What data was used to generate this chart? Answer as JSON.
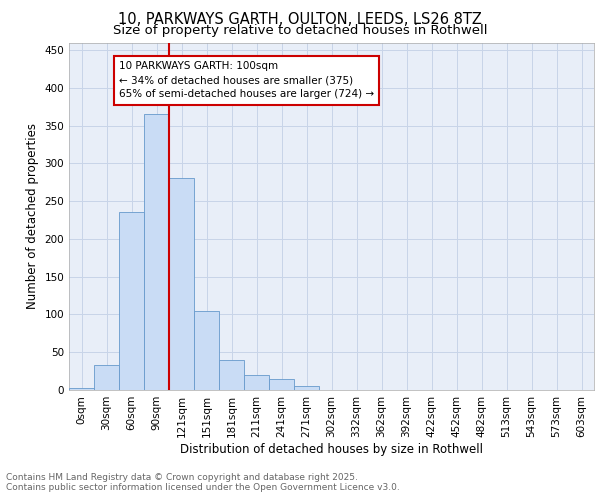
{
  "title_line1": "10, PARKWAYS GARTH, OULTON, LEEDS, LS26 8TZ",
  "title_line2": "Size of property relative to detached houses in Rothwell",
  "xlabel": "Distribution of detached houses by size in Rothwell",
  "ylabel": "Number of detached properties",
  "categories": [
    "0sqm",
    "30sqm",
    "60sqm",
    "90sqm",
    "121sqm",
    "151sqm",
    "181sqm",
    "211sqm",
    "241sqm",
    "271sqm",
    "302sqm",
    "332sqm",
    "362sqm",
    "392sqm",
    "422sqm",
    "452sqm",
    "482sqm",
    "513sqm",
    "543sqm",
    "573sqm",
    "603sqm"
  ],
  "values": [
    2,
    33,
    235,
    365,
    280,
    105,
    40,
    20,
    15,
    5,
    0,
    0,
    0,
    0,
    0,
    0,
    0,
    0,
    0,
    0,
    0
  ],
  "bar_color": "#c9dcf5",
  "bar_edge_color": "#6699cc",
  "grid_color": "#c8d4e8",
  "background_color": "#e8eef8",
  "property_line_label": "10 PARKWAYS GARTH: 100sqm",
  "annotation_line2": "← 34% of detached houses are smaller (375)",
  "annotation_line3": "65% of semi-detached houses are larger (724) →",
  "annotation_box_color": "#cc0000",
  "red_line_x": 3.5,
  "ylim": [
    0,
    460
  ],
  "yticks": [
    0,
    50,
    100,
    150,
    200,
    250,
    300,
    350,
    400,
    450
  ],
  "footer_line1": "Contains HM Land Registry data © Crown copyright and database right 2025.",
  "footer_line2": "Contains public sector information licensed under the Open Government Licence v3.0.",
  "title_fontsize": 10.5,
  "subtitle_fontsize": 9.5,
  "axis_label_fontsize": 8.5,
  "tick_fontsize": 7.5,
  "annotation_fontsize": 7.5,
  "footer_fontsize": 6.5
}
